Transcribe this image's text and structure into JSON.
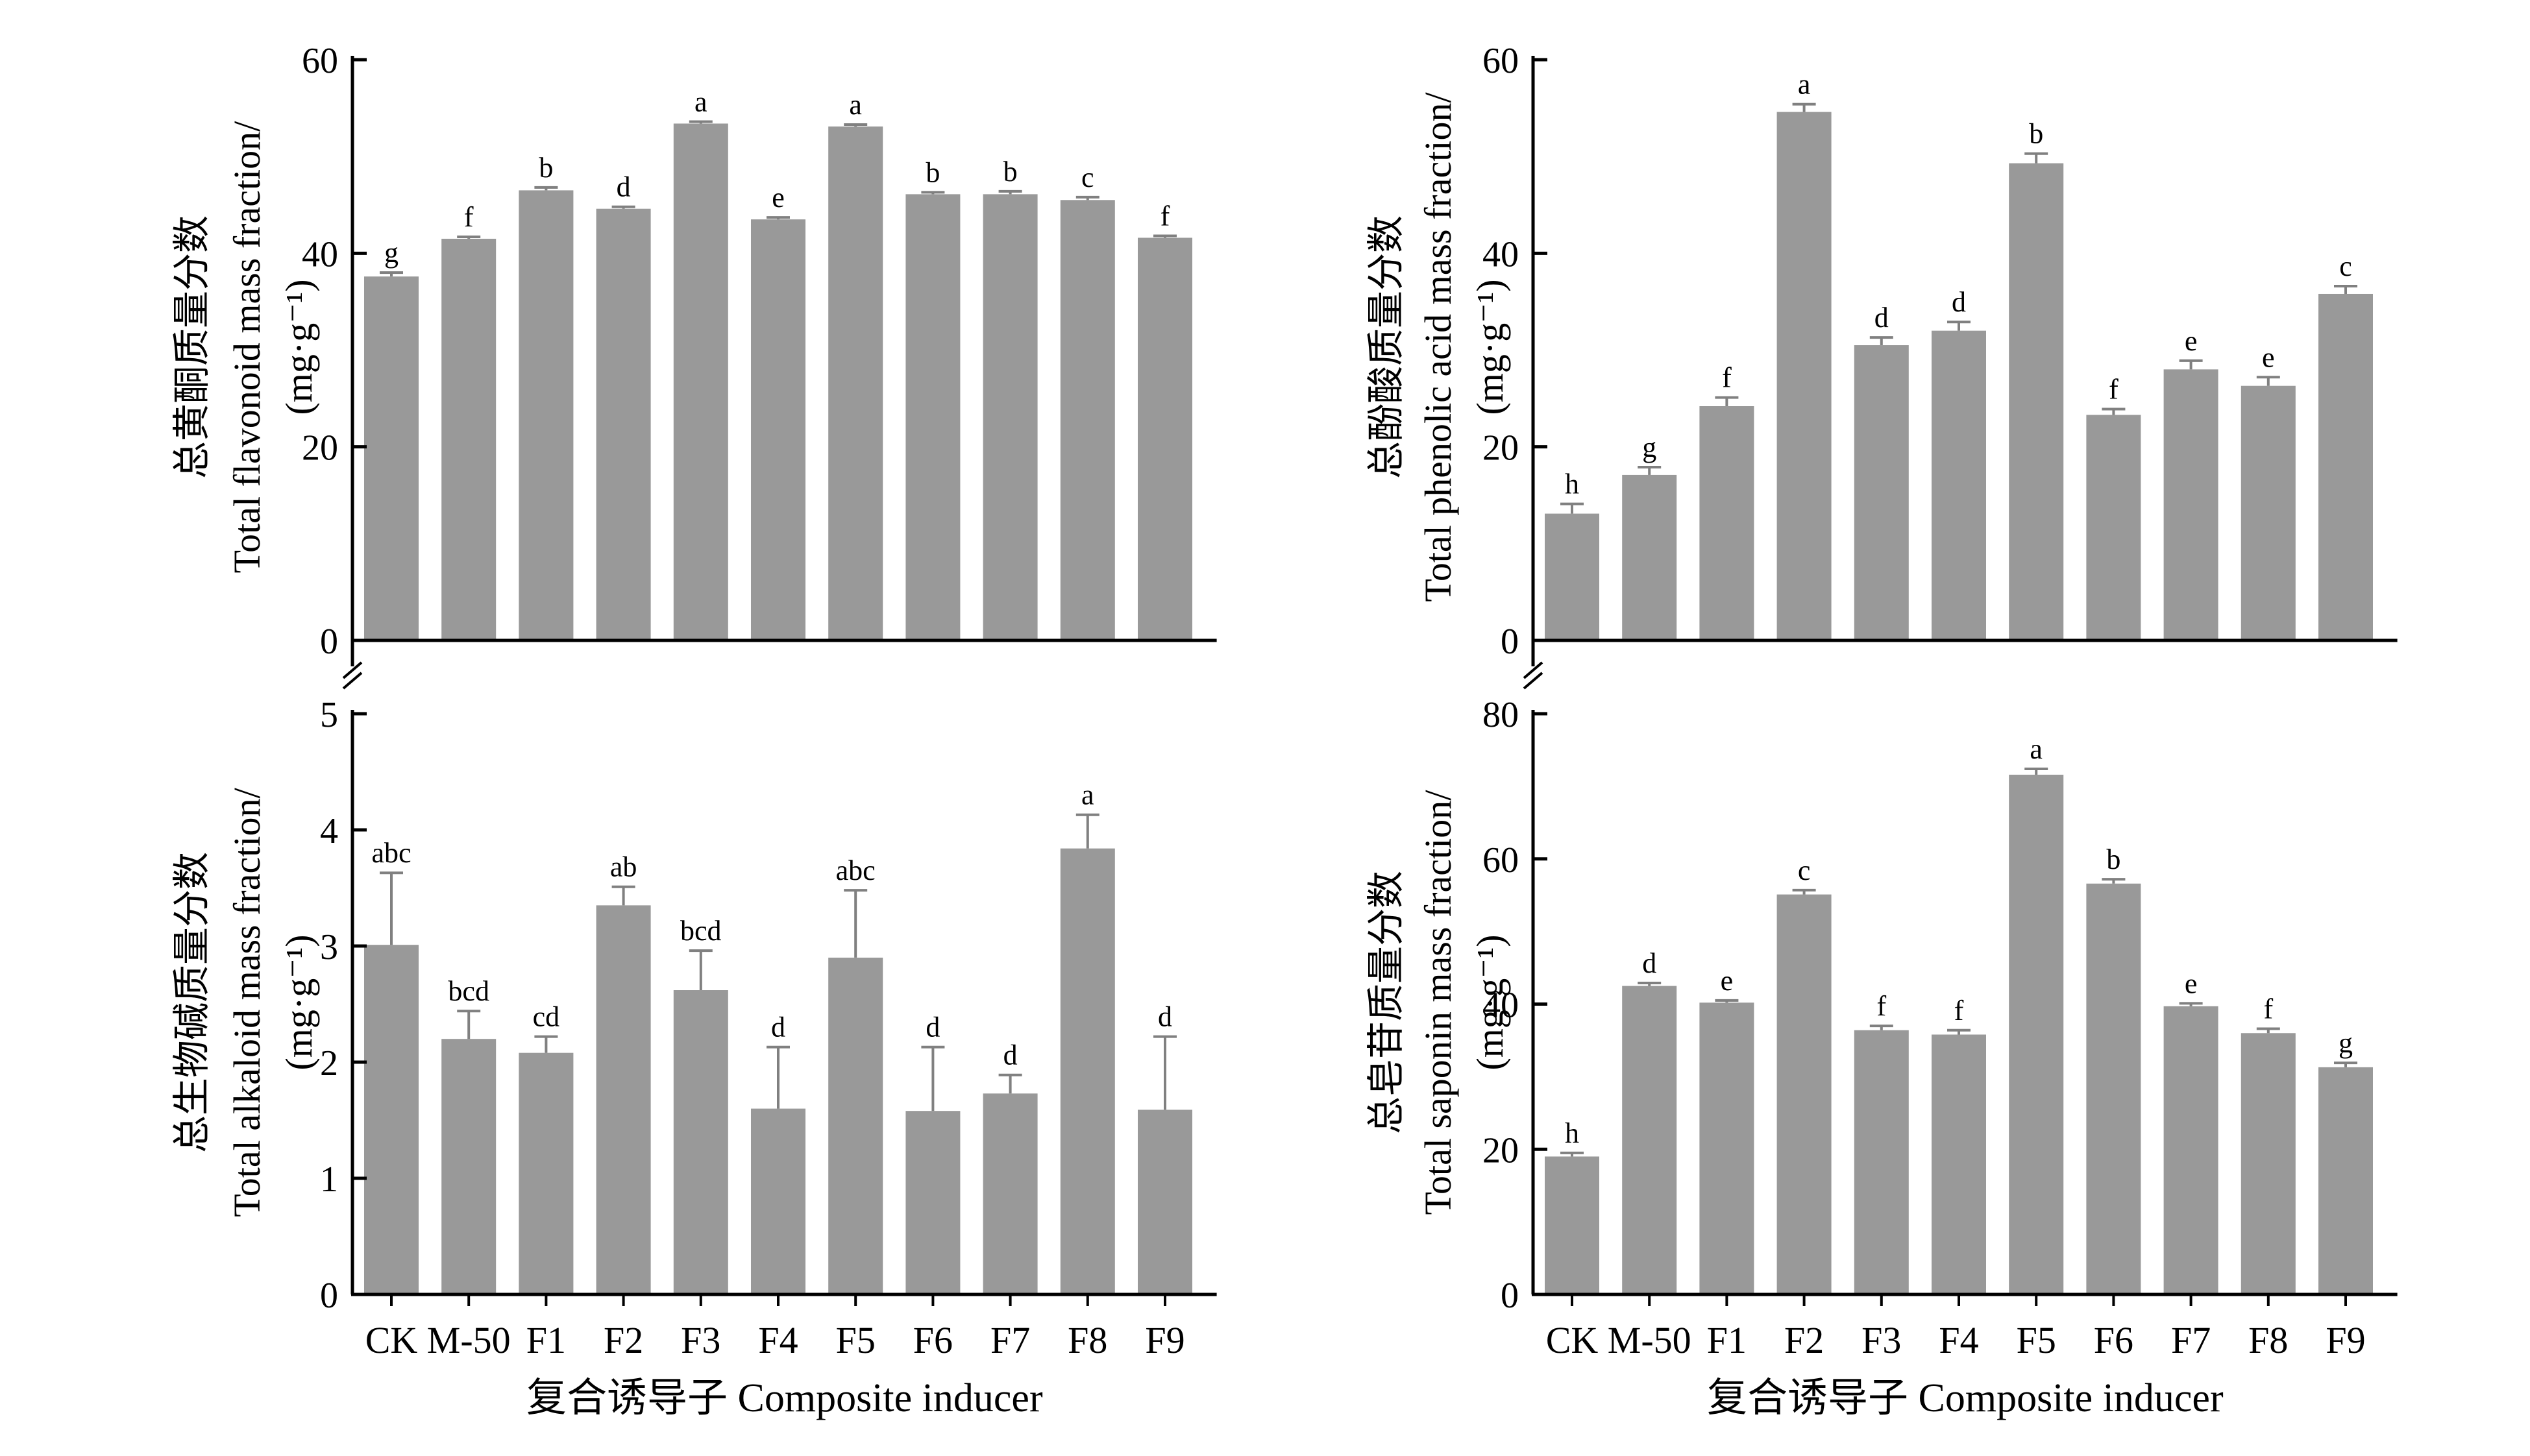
{
  "categories": [
    "CK",
    "M-50",
    "F1",
    "F2",
    "F3",
    "F4",
    "F5",
    "F6",
    "F7",
    "F8",
    "F9"
  ],
  "style": {
    "bar_color": "#999999",
    "axis_color": "#000000",
    "errorbar_color": "#808080"
  },
  "chart_data": [
    {
      "type": "bar",
      "ylabel_lines": [
        "总黄酮质量分数",
        "Total flavonoid mass fraction/",
        "(mg·g⁻¹)"
      ],
      "xlabel": "",
      "ylim": [
        0,
        60
      ],
      "yticks": [
        0,
        20,
        40,
        60
      ],
      "values": [
        37.6,
        41.5,
        46.5,
        44.6,
        53.4,
        43.5,
        53.1,
        46.1,
        46.1,
        45.5,
        41.6
      ],
      "errors": [
        0.4,
        0.2,
        0.3,
        0.2,
        0.2,
        0.2,
        0.2,
        0.2,
        0.3,
        0.3,
        0.2
      ],
      "letters": [
        "g",
        "f",
        "b",
        "d",
        "a",
        "e",
        "a",
        "b",
        "b",
        "c",
        "f"
      ],
      "show_categories": false
    },
    {
      "type": "bar",
      "ylabel_lines": [
        "总酚酸质量分数",
        "Total phenolic acid mass fraction/",
        "(mg·g⁻¹)"
      ],
      "xlabel": "",
      "ylim": [
        0,
        60
      ],
      "yticks": [
        0,
        20,
        40,
        60
      ],
      "values": [
        13.1,
        17.1,
        24.2,
        54.6,
        30.5,
        32.0,
        49.3,
        23.3,
        28.0,
        26.3,
        35.8
      ],
      "errors": [
        1.0,
        0.8,
        0.9,
        0.8,
        0.8,
        0.9,
        1.0,
        0.6,
        0.9,
        0.9,
        0.8
      ],
      "letters": [
        "h",
        "g",
        "f",
        "a",
        "d",
        "d",
        "b",
        "f",
        "e",
        "e",
        "c"
      ],
      "show_categories": false
    },
    {
      "type": "bar",
      "ylabel_lines": [
        "总生物碱质量分数",
        "Total alkaloid mass fraction/",
        "(mg·g⁻¹)"
      ],
      "xlabel": "复合诱导子 Composite inducer",
      "ylim": [
        0,
        5
      ],
      "yticks": [
        0,
        1,
        2,
        3,
        4,
        5
      ],
      "values": [
        3.01,
        2.2,
        2.08,
        3.35,
        2.62,
        1.6,
        2.9,
        1.58,
        1.73,
        3.84,
        1.59
      ],
      "errors": [
        0.62,
        0.24,
        0.14,
        0.16,
        0.34,
        0.53,
        0.58,
        0.55,
        0.16,
        0.29,
        0.63
      ],
      "letters": [
        "abc",
        "bcd",
        "cd",
        "ab",
        "bcd",
        "d",
        "abc",
        "d",
        "d",
        "a",
        "d"
      ],
      "show_categories": true
    },
    {
      "type": "bar",
      "ylabel_lines": [
        "总皂苷质量分数",
        "Total saponin mass fraction/",
        "(mg·g⁻¹)"
      ],
      "xlabel": "复合诱导子 Composite inducer",
      "ylim": [
        0,
        80
      ],
      "yticks": [
        0,
        20,
        40,
        60,
        80
      ],
      "values": [
        19.0,
        42.5,
        40.2,
        55.1,
        36.4,
        35.8,
        71.6,
        56.6,
        39.7,
        36.0,
        31.3
      ],
      "errors": [
        0.5,
        0.4,
        0.3,
        0.6,
        0.6,
        0.6,
        0.8,
        0.6,
        0.4,
        0.6,
        0.6
      ],
      "letters": [
        "h",
        "d",
        "e",
        "c",
        "f",
        "f",
        "a",
        "b",
        "e",
        "f",
        "g"
      ],
      "show_categories": true
    }
  ]
}
